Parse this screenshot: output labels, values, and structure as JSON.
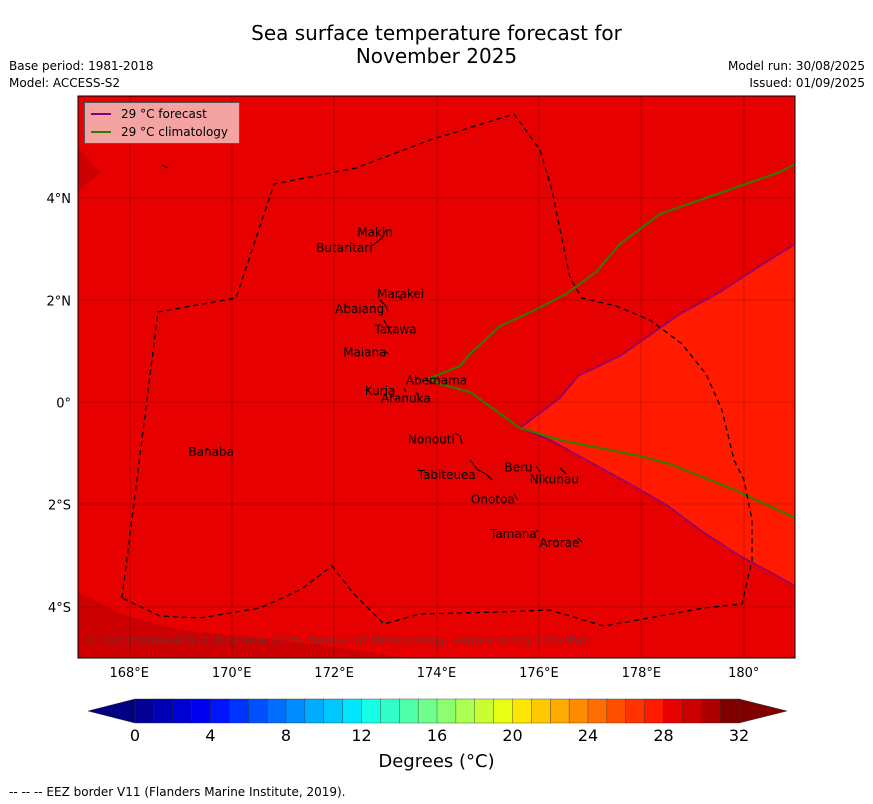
{
  "title_line1": "Sea surface temperature forecast for",
  "title_line2": "November 2025",
  "base_period": "Base period: 1981-2018",
  "model": "Model: ACCESS-S2",
  "model_run": "Model run: 30/08/2025",
  "issued": "Issued: 01/09/2025",
  "legend": {
    "forecast_label": "29 °C  forecast",
    "climatology_label": "29 °C  climatology",
    "forecast_color": "#800080",
    "climatology_color": "#2e7d00"
  },
  "copyright": "© Commonwealth of Australia 2025, Bureau of Meteorology, supported by COSPPac",
  "colorbar_label": "Degrees (°C)",
  "footer": "--  --  -- EEZ border V11 (Flanders Marine Institute, 2019).",
  "map_data": {
    "lon_range": [
      167,
      181
    ],
    "lat_range": [
      -5,
      6
    ],
    "x_ticks": [
      "168°E",
      "170°E",
      "172°E",
      "174°E",
      "176°E",
      "178°E",
      "180°"
    ],
    "y_ticks": [
      "4°N",
      "2°N",
      "0°",
      "2°S",
      "4°S"
    ],
    "colors": {
      "warm_30": "#e60000",
      "warm_29": "#ff1a00",
      "warm_31": "#cc0000"
    },
    "places": [
      {
        "name": "Makin",
        "lon": 172.8,
        "lat": 3.25
      },
      {
        "name": "Butaritari",
        "lon": 172.2,
        "lat": 2.95
      },
      {
        "name": "Marakei",
        "lon": 173.3,
        "lat": 2.05
      },
      {
        "name": "Abaiang",
        "lon": 172.5,
        "lat": 1.75
      },
      {
        "name": "Tarawa",
        "lon": 173.2,
        "lat": 1.35
      },
      {
        "name": "Maiana",
        "lon": 172.6,
        "lat": 0.9
      },
      {
        "name": "Abemama",
        "lon": 174.0,
        "lat": 0.35
      },
      {
        "name": "Kuria",
        "lon": 172.9,
        "lat": 0.15
      },
      {
        "name": "Aranuka",
        "lon": 173.4,
        "lat": -0.0
      },
      {
        "name": "Nonouti",
        "lon": 173.9,
        "lat": -0.8
      },
      {
        "name": "Banaba",
        "lon": 169.6,
        "lat": -1.05
      },
      {
        "name": "Beru",
        "lon": 175.6,
        "lat": -1.35
      },
      {
        "name": "Nikunau",
        "lon": 176.3,
        "lat": -1.58
      },
      {
        "name": "Tabiteuea",
        "lon": 174.2,
        "lat": -1.5
      },
      {
        "name": "Onotoa",
        "lon": 175.1,
        "lat": -1.98
      },
      {
        "name": "Tamana",
        "lon": 175.5,
        "lat": -2.65
      },
      {
        "name": "Arorae",
        "lon": 176.4,
        "lat": -2.83
      }
    ],
    "colorbar": {
      "min": 0,
      "max": 32,
      "step": 1,
      "tick_labels": [
        "0",
        "4",
        "8",
        "12",
        "16",
        "20",
        "24",
        "28",
        "32"
      ]
    }
  }
}
